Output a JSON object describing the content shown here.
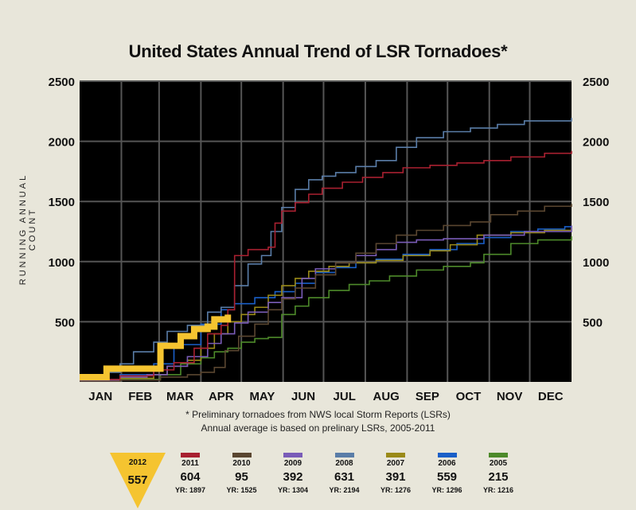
{
  "chart_data": {
    "type": "line",
    "title": "United States Annual Trend of LSR Tornadoes*",
    "ylabel": "RUNNING ANNUAL COUNT",
    "xlabel": "",
    "months": [
      "JAN",
      "FEB",
      "MAR",
      "APR",
      "MAY",
      "JUN",
      "JUL",
      "AUG",
      "SEP",
      "OCT",
      "NOV",
      "DEC"
    ],
    "yticks": [
      500,
      1000,
      1500,
      2000,
      2500
    ],
    "ylim": [
      0,
      2500
    ],
    "xlim": [
      0,
      365
    ],
    "grid": true,
    "footnote": "* Preliminary tornadoes from NWS local Storm Reports (LSRs)",
    "footnote2": "Annual average is based on prelinary LSRs, 2005-2011",
    "series": [
      {
        "name": "2005",
        "color": "#4d8a2a",
        "ytd": "215",
        "total": "YR: 1216",
        "points": [
          [
            0,
            10
          ],
          [
            30,
            20
          ],
          [
            60,
            60
          ],
          [
            75,
            150
          ],
          [
            90,
            200
          ],
          [
            100,
            250
          ],
          [
            110,
            280
          ],
          [
            120,
            330
          ],
          [
            130,
            360
          ],
          [
            140,
            370
          ],
          [
            150,
            560
          ],
          [
            160,
            630
          ],
          [
            170,
            700
          ],
          [
            185,
            760
          ],
          [
            200,
            810
          ],
          [
            215,
            840
          ],
          [
            230,
            880
          ],
          [
            250,
            930
          ],
          [
            270,
            960
          ],
          [
            290,
            990
          ],
          [
            300,
            1060
          ],
          [
            320,
            1150
          ],
          [
            340,
            1180
          ],
          [
            365,
            1210
          ]
        ]
      },
      {
        "name": "2006",
        "color": "#1a5fc8",
        "ytd": "559",
        "total": "YR: 1296",
        "points": [
          [
            0,
            20
          ],
          [
            30,
            60
          ],
          [
            55,
            150
          ],
          [
            70,
            310
          ],
          [
            90,
            480
          ],
          [
            105,
            600
          ],
          [
            115,
            650
          ],
          [
            130,
            700
          ],
          [
            145,
            750
          ],
          [
            160,
            820
          ],
          [
            175,
            910
          ],
          [
            190,
            950
          ],
          [
            205,
            990
          ],
          [
            220,
            1020
          ],
          [
            240,
            1060
          ],
          [
            260,
            1100
          ],
          [
            280,
            1150
          ],
          [
            300,
            1200
          ],
          [
            320,
            1250
          ],
          [
            340,
            1270
          ],
          [
            360,
            1290
          ],
          [
            365,
            1300
          ]
        ]
      },
      {
        "name": "2007",
        "color": "#9a8a18",
        "ytd": "391",
        "total": "YR: 1276",
        "points": [
          [
            0,
            10
          ],
          [
            30,
            30
          ],
          [
            55,
            60
          ],
          [
            65,
            130
          ],
          [
            80,
            180
          ],
          [
            90,
            280
          ],
          [
            100,
            400
          ],
          [
            110,
            500
          ],
          [
            120,
            560
          ],
          [
            130,
            620
          ],
          [
            140,
            720
          ],
          [
            150,
            800
          ],
          [
            160,
            860
          ],
          [
            170,
            920
          ],
          [
            185,
            960
          ],
          [
            200,
            990
          ],
          [
            220,
            1010
          ],
          [
            240,
            1050
          ],
          [
            260,
            1090
          ],
          [
            275,
            1140
          ],
          [
            295,
            1220
          ],
          [
            320,
            1240
          ],
          [
            345,
            1260
          ],
          [
            365,
            1280
          ]
        ]
      },
      {
        "name": "2008",
        "color": "#5a7da8",
        "ytd": "631",
        "total": "YR: 2194",
        "points": [
          [
            0,
            50
          ],
          [
            20,
            80
          ],
          [
            30,
            150
          ],
          [
            40,
            250
          ],
          [
            55,
            330
          ],
          [
            65,
            420
          ],
          [
            80,
            470
          ],
          [
            95,
            580
          ],
          [
            105,
            620
          ],
          [
            115,
            800
          ],
          [
            125,
            980
          ],
          [
            135,
            1050
          ],
          [
            142,
            1250
          ],
          [
            150,
            1450
          ],
          [
            160,
            1600
          ],
          [
            170,
            1680
          ],
          [
            180,
            1710
          ],
          [
            190,
            1740
          ],
          [
            205,
            1790
          ],
          [
            220,
            1840
          ],
          [
            235,
            1950
          ],
          [
            250,
            2030
          ],
          [
            270,
            2080
          ],
          [
            290,
            2110
          ],
          [
            310,
            2140
          ],
          [
            330,
            2170
          ],
          [
            365,
            2194
          ]
        ]
      },
      {
        "name": "2009",
        "color": "#7a5cb8",
        "ytd": "392",
        "total": "YR: 1304",
        "points": [
          [
            0,
            10
          ],
          [
            30,
            40
          ],
          [
            50,
            60
          ],
          [
            65,
            130
          ],
          [
            80,
            210
          ],
          [
            95,
            320
          ],
          [
            105,
            400
          ],
          [
            115,
            490
          ],
          [
            125,
            580
          ],
          [
            140,
            660
          ],
          [
            150,
            700
          ],
          [
            165,
            860
          ],
          [
            175,
            940
          ],
          [
            190,
            990
          ],
          [
            205,
            1050
          ],
          [
            220,
            1100
          ],
          [
            235,
            1160
          ],
          [
            250,
            1180
          ],
          [
            270,
            1190
          ],
          [
            300,
            1220
          ],
          [
            330,
            1250
          ],
          [
            365,
            1300
          ]
        ]
      },
      {
        "name": "2010",
        "color": "#5a4630",
        "ytd": "95",
        "total": "YR: 1525",
        "points": [
          [
            0,
            5
          ],
          [
            30,
            15
          ],
          [
            60,
            40
          ],
          [
            80,
            60
          ],
          [
            90,
            80
          ],
          [
            100,
            120
          ],
          [
            108,
            260
          ],
          [
            118,
            380
          ],
          [
            130,
            480
          ],
          [
            140,
            600
          ],
          [
            150,
            690
          ],
          [
            160,
            780
          ],
          [
            175,
            890
          ],
          [
            190,
            990
          ],
          [
            205,
            1070
          ],
          [
            220,
            1150
          ],
          [
            235,
            1220
          ],
          [
            250,
            1260
          ],
          [
            270,
            1300
          ],
          [
            290,
            1330
          ],
          [
            305,
            1390
          ],
          [
            325,
            1420
          ],
          [
            345,
            1460
          ],
          [
            365,
            1480
          ]
        ]
      },
      {
        "name": "2011",
        "color": "#a82030",
        "ytd": "604",
        "total": "YR: 1897",
        "points": [
          [
            0,
            20
          ],
          [
            30,
            50
          ],
          [
            55,
            100
          ],
          [
            70,
            160
          ],
          [
            85,
            280
          ],
          [
            95,
            400
          ],
          [
            105,
            470
          ],
          [
            110,
            600
          ],
          [
            115,
            1050
          ],
          [
            125,
            1100
          ],
          [
            140,
            1120
          ],
          [
            145,
            1320
          ],
          [
            150,
            1420
          ],
          [
            160,
            1490
          ],
          [
            170,
            1560
          ],
          [
            180,
            1610
          ],
          [
            195,
            1660
          ],
          [
            210,
            1700
          ],
          [
            225,
            1740
          ],
          [
            240,
            1780
          ],
          [
            260,
            1800
          ],
          [
            280,
            1820
          ],
          [
            300,
            1840
          ],
          [
            320,
            1870
          ],
          [
            345,
            1900
          ],
          [
            365,
            1920
          ]
        ]
      },
      {
        "name": "2012",
        "color": "#f5c430",
        "ytd": "557",
        "total": "",
        "points": [
          [
            0,
            40
          ],
          [
            20,
            40
          ],
          [
            20,
            110
          ],
          [
            60,
            110
          ],
          [
            60,
            300
          ],
          [
            75,
            320
          ],
          [
            75,
            380
          ],
          [
            85,
            390
          ],
          [
            85,
            440
          ],
          [
            95,
            460
          ],
          [
            100,
            520
          ],
          [
            110,
            560
          ]
        ]
      }
    ],
    "legend_current": {
      "year": "2012",
      "value": "557",
      "color": "#f5c430"
    }
  }
}
